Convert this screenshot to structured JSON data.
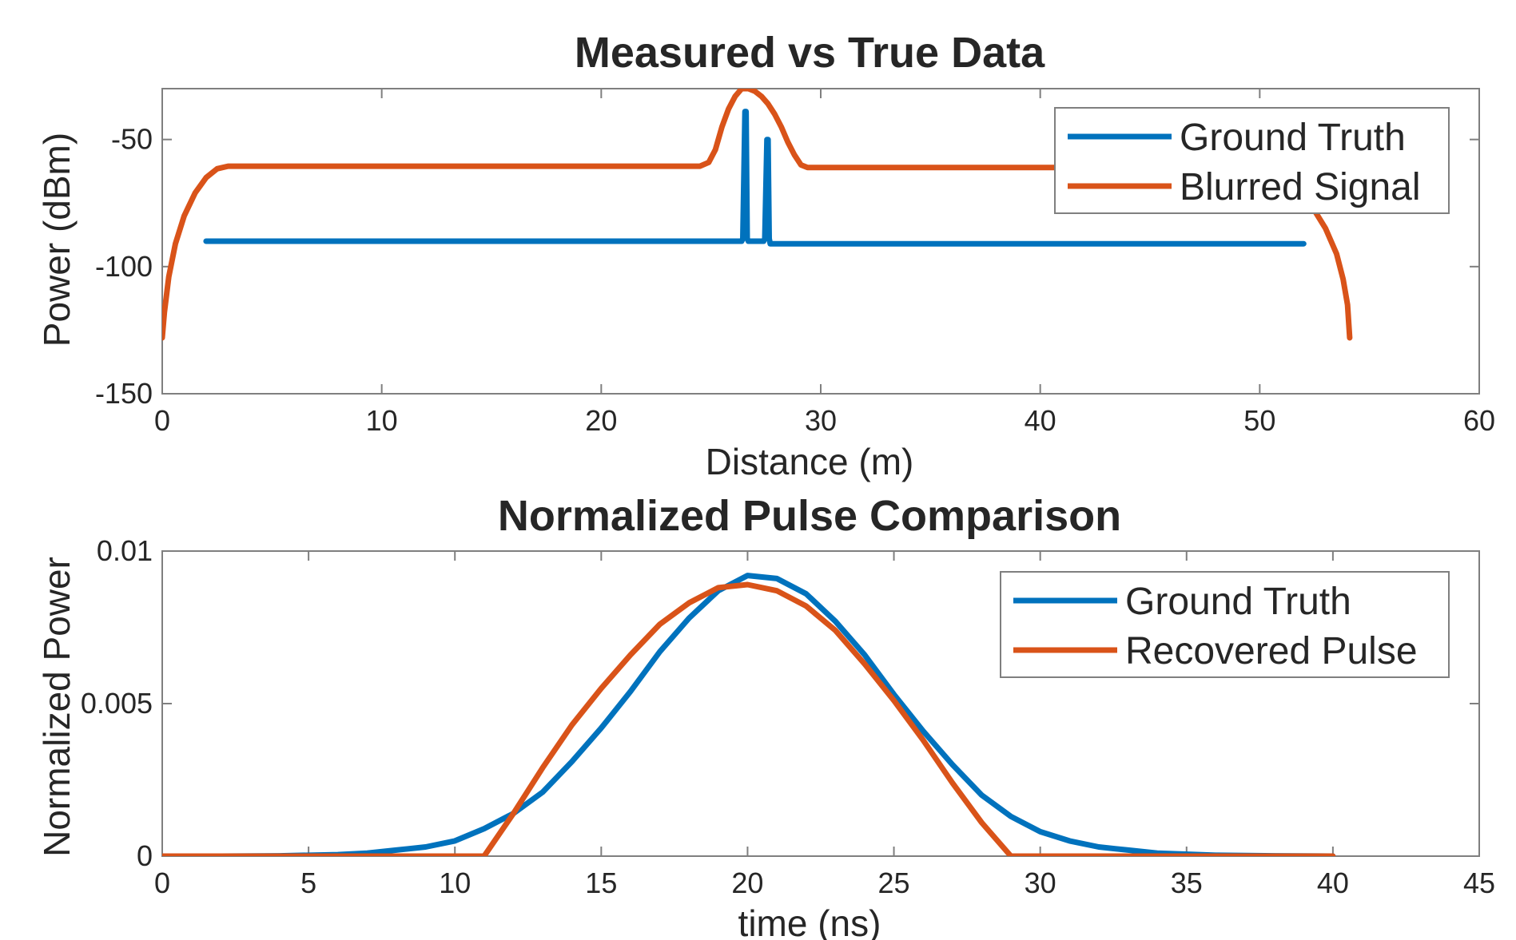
{
  "colors": {
    "series1": "#0072BD",
    "series2": "#D95319",
    "axis": "#262626",
    "box": "#7f7f7f"
  },
  "chart_data": [
    {
      "type": "line",
      "title": "Measured vs True Data",
      "xlabel": "Distance (m)",
      "ylabel": "Power (dBm)",
      "xlim": [
        0,
        60
      ],
      "ylim": [
        -150,
        -30
      ],
      "xticks": [
        0,
        10,
        20,
        30,
        40,
        50,
        60
      ],
      "yticks": [
        -150,
        -100,
        -50
      ],
      "grid": false,
      "legend_position": "top-right",
      "series": [
        {
          "name": "Ground Truth",
          "color": "#0072BD",
          "x": [
            2,
            26.4,
            26.45,
            26.55,
            26.6,
            26.65,
            26.7,
            27.4,
            27.45,
            27.55,
            27.6,
            27.65,
            27.7,
            52
          ],
          "y": [
            -90,
            -90,
            -89,
            -39,
            -39,
            -89,
            -90,
            -90,
            -89,
            -50,
            -50,
            -89,
            -91,
            -91
          ]
        },
        {
          "name": "Blurred Signal",
          "color": "#D95319",
          "x": [
            0,
            0.1,
            0.3,
            0.6,
            1.0,
            1.5,
            2.0,
            2.5,
            3.0,
            24.5,
            24.9,
            25.2,
            25.5,
            25.8,
            26.1,
            26.4,
            26.7,
            27.0,
            27.3,
            27.6,
            27.9,
            28.2,
            28.5,
            28.8,
            29.1,
            29.4,
            48.0,
            48.5,
            49.5,
            50.5,
            51.5,
            52.5,
            53.0,
            53.5,
            53.8,
            54.0,
            54.1
          ],
          "y": [
            -128,
            -118,
            -104,
            -91,
            -80,
            -71,
            -65,
            -61.5,
            -60.5,
            -60.5,
            -59,
            -54,
            -45,
            -38,
            -33,
            -30,
            -30,
            -31,
            -33,
            -36,
            -40,
            -45,
            -51,
            -56,
            -60,
            -61,
            -61,
            -61,
            -62,
            -65,
            -70,
            -78,
            -85,
            -95,
            -105,
            -115,
            -128
          ]
        }
      ]
    },
    {
      "type": "line",
      "title": "Normalized Pulse Comparison",
      "xlabel": "time (ns)",
      "ylabel": "Normalized Power",
      "xlim": [
        0,
        45
      ],
      "ylim": [
        0,
        0.01
      ],
      "xticks": [
        0,
        5,
        10,
        15,
        20,
        25,
        30,
        35,
        40,
        45
      ],
      "yticks": [
        0,
        0.005,
        0.01
      ],
      "ytick_labels": [
        "0",
        "0.005",
        "0.01"
      ],
      "grid": false,
      "legend_position": "top-right",
      "series": [
        {
          "name": "Ground Truth",
          "color": "#0072BD",
          "x": [
            0,
            2,
            4,
            6,
            7,
            8,
            9,
            10,
            11,
            12,
            13,
            14,
            15,
            16,
            17,
            18,
            19,
            20,
            21,
            22,
            23,
            24,
            25,
            26,
            27,
            28,
            29,
            30,
            31,
            32,
            33,
            34,
            36,
            38,
            40
          ],
          "y": [
            0,
            0,
            1e-05,
            5e-05,
            0.0001,
            0.0002,
            0.0003,
            0.0005,
            0.0009,
            0.0014,
            0.0021,
            0.0031,
            0.0042,
            0.0054,
            0.0067,
            0.0078,
            0.0087,
            0.0092,
            0.0091,
            0.0086,
            0.0077,
            0.0066,
            0.0053,
            0.0041,
            0.003,
            0.002,
            0.0013,
            0.0008,
            0.0005,
            0.0003,
            0.0002,
            0.0001,
            3e-05,
            1e-05,
            0
          ]
        },
        {
          "name": "Recovered Pulse",
          "color": "#D95319",
          "x": [
            0,
            11.0,
            12,
            13,
            14,
            15,
            16,
            17,
            18,
            19,
            20,
            21,
            22,
            23,
            24,
            25,
            26,
            27,
            28,
            29.0,
            40
          ],
          "y": [
            0,
            0,
            0.0014,
            0.0029,
            0.0043,
            0.0055,
            0.0066,
            0.0076,
            0.0083,
            0.0088,
            0.0089,
            0.0087,
            0.0082,
            0.0074,
            0.0063,
            0.0051,
            0.0038,
            0.0024,
            0.0011,
            0,
            0
          ]
        }
      ]
    }
  ]
}
